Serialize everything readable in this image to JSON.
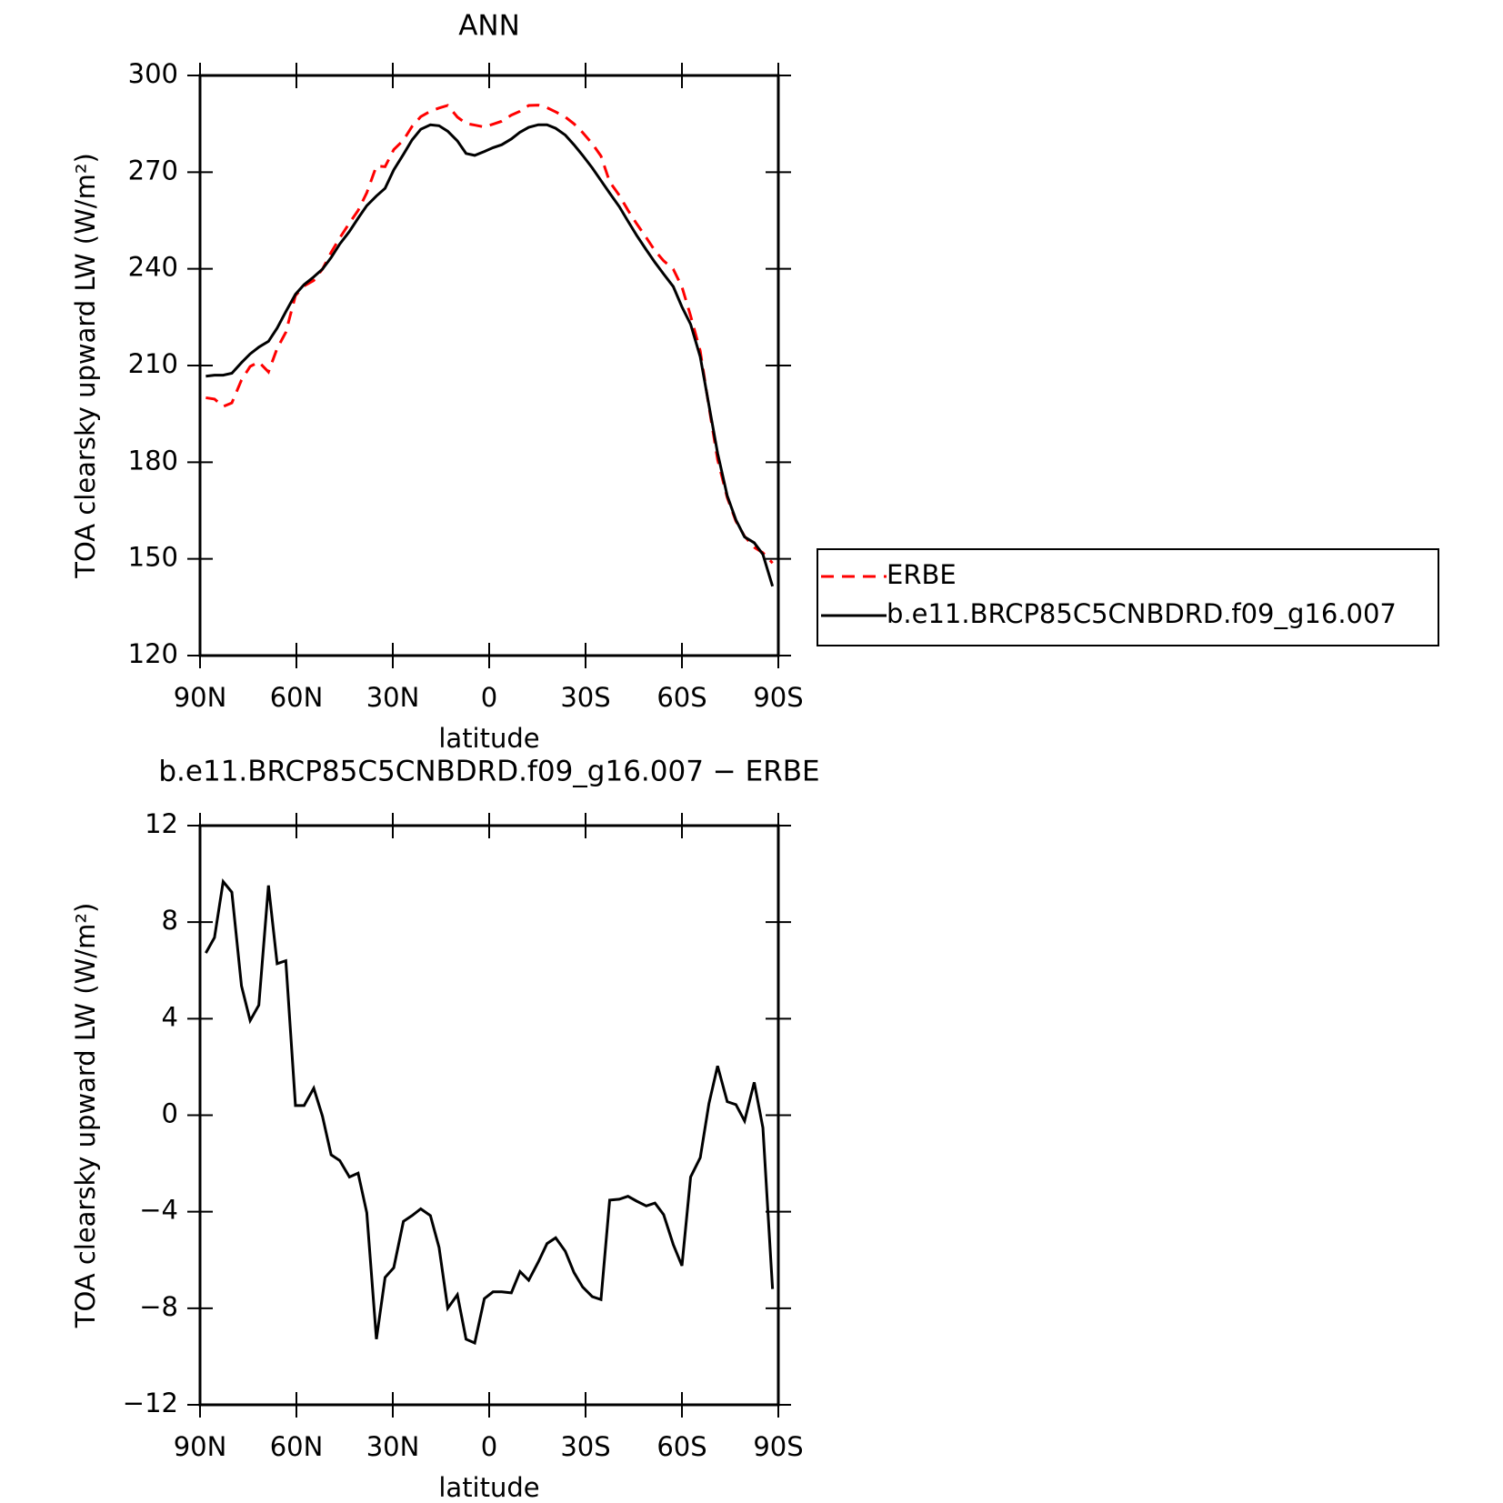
{
  "chart_data": [
    {
      "type": "line",
      "title": "ANN",
      "x_label": "latitude",
      "y_label": "TOA clearsky upward LW (W/m²)",
      "xlim": [
        90,
        -90
      ],
      "xticks": [
        {
          "value": 90,
          "label": "90N"
        },
        {
          "value": 60,
          "label": "60N"
        },
        {
          "value": 30,
          "label": "30N"
        },
        0,
        {
          "value": -30,
          "label": "30S"
        },
        {
          "value": -60,
          "label": "60S"
        },
        {
          "value": -90,
          "label": "90S"
        }
      ],
      "ylim": [
        120,
        300
      ],
      "yticks": [
        120,
        150,
        180,
        210,
        240,
        270,
        300
      ],
      "legend": "right",
      "x": [
        88.2,
        85.5,
        82.8,
        80.1,
        77.1,
        74.4,
        71.7,
        68.7,
        66.0,
        63.3,
        60.3,
        57.6,
        54.6,
        51.9,
        49.2,
        46.5,
        43.5,
        40.8,
        38.1,
        35.1,
        32.4,
        29.7,
        26.7,
        24.0,
        21.3,
        18.3,
        15.6,
        12.9,
        9.9,
        7.2,
        4.5,
        1.5,
        -1.2,
        -3.9,
        -6.9,
        -9.6,
        -12.3,
        -15.3,
        -18.0,
        -20.7,
        -23.7,
        -26.4,
        -29.1,
        -32.1,
        -34.8,
        -37.5,
        -40.5,
        -43.2,
        -45.9,
        -48.9,
        -51.6,
        -54.3,
        -57.3,
        -60.0,
        -62.7,
        -65.7,
        -68.4,
        -71.1,
        -74.1,
        -76.8,
        -79.5,
        -82.5,
        -85.2,
        -88.2
      ],
      "series": [
        {
          "name": "ERBE",
          "color": "#ff0000",
          "line_style": "dashed",
          "values": [
            200.0,
            199.6,
            197.3,
            198.4,
            205.5,
            209.7,
            211.1,
            208.0,
            215.3,
            220.3,
            231.7,
            234.7,
            236.4,
            239.9,
            245.1,
            249.6,
            254.2,
            258.1,
            263.6,
            271.9,
            271.7,
            277.0,
            279.9,
            284.2,
            287.2,
            288.9,
            289.9,
            290.7,
            287.1,
            285.1,
            284.6,
            284.0,
            284.9,
            285.8,
            287.7,
            288.9,
            290.7,
            290.8,
            290.0,
            288.7,
            287.1,
            285.0,
            282.3,
            278.8,
            275.0,
            267.0,
            262.8,
            258.2,
            254.0,
            249.7,
            245.6,
            242.5,
            239.9,
            234.4,
            225.4,
            214.5,
            197.2,
            180.8,
            169.0,
            161.7,
            157.0,
            153.6,
            151.9,
            148.7
          ]
        },
        {
          "name": "b.e11.BRCP85C5CNBDRD.f09_g16.007",
          "color": "#000000",
          "line_style": "solid",
          "values": [
            206.7,
            207,
            207,
            207.6,
            210.9,
            213.6,
            215.7,
            217.5,
            221.6,
            226.7,
            232.1,
            235.1,
            237.5,
            239.9,
            243.5,
            247.7,
            251.6,
            255.7,
            259.6,
            262.6,
            265,
            270.7,
            275.5,
            280,
            283.3,
            284.7,
            284.4,
            282.7,
            279.7,
            275.8,
            275.2,
            276.4,
            277.6,
            278.5,
            280.3,
            282.4,
            283.9,
            284.7,
            284.7,
            283.6,
            281.5,
            278.5,
            275.2,
            271.3,
            267.4,
            263.5,
            259.3,
            254.8,
            250.4,
            245.9,
            242,
            238.4,
            234.5,
            228.2,
            222.8,
            212.7,
            197.7,
            182.8,
            169.6,
            162.1,
            156.8,
            155,
            151.4,
            141.5
          ]
        }
      ]
    },
    {
      "type": "line",
      "title": "b.e11.BRCP85C5CNBDRD.f09_g16.007 − ERBE",
      "x_label": "latitude",
      "y_label": "TOA clearsky upward LW (W/m²)",
      "xlim": [
        90,
        -90
      ],
      "xticks": [
        {
          "value": 90,
          "label": "90N"
        },
        {
          "value": 60,
          "label": "60N"
        },
        {
          "value": 30,
          "label": "30N"
        },
        0,
        {
          "value": -30,
          "label": "30S"
        },
        {
          "value": -60,
          "label": "60S"
        },
        {
          "value": -90,
          "label": "90S"
        }
      ],
      "ylim": [
        -12,
        12
      ],
      "yticks": [
        {
          "value": -12,
          "label": "−12"
        },
        {
          "value": -8,
          "label": "−8"
        },
        {
          "value": -4,
          "label": "−4"
        },
        0,
        4,
        8,
        12
      ],
      "x": [
        88.2,
        85.5,
        82.8,
        80.1,
        77.1,
        74.4,
        71.7,
        68.7,
        66.0,
        63.3,
        60.3,
        57.6,
        54.6,
        51.9,
        49.2,
        46.5,
        43.5,
        40.8,
        38.1,
        35.1,
        32.4,
        29.7,
        26.7,
        24.0,
        21.3,
        18.3,
        15.6,
        12.9,
        9.9,
        7.2,
        4.5,
        1.5,
        -1.2,
        -3.9,
        -6.9,
        -9.6,
        -12.3,
        -15.3,
        -18.0,
        -20.7,
        -23.7,
        -26.4,
        -29.1,
        -32.1,
        -34.8,
        -37.5,
        -40.5,
        -43.2,
        -45.9,
        -48.9,
        -51.6,
        -54.3,
        -57.3,
        -60.0,
        -62.7,
        -65.7,
        -68.4,
        -71.1,
        -74.1,
        -76.8,
        -79.5,
        -82.5,
        -85.2,
        -88.2
      ],
      "color": "#000000",
      "values": [
        6.72,
        7.36,
        9.68,
        9.24,
        5.36,
        3.92,
        4.56,
        9.52,
        6.28,
        6.4,
        0.4,
        0.4,
        1.12,
        -0.04,
        -1.64,
        -1.88,
        -2.56,
        -2.4,
        -4.04,
        -9.28,
        -6.72,
        -6.32,
        -4.4,
        -4.16,
        -3.88,
        -4.16,
        -5.48,
        -8.0,
        -7.44,
        -9.28,
        -9.44,
        -7.6,
        -7.32,
        -7.32,
        -7.36,
        -6.48,
        -6.84,
        -6.08,
        -5.32,
        -5.08,
        -5.64,
        -6.52,
        -7.12,
        -7.52,
        -7.64,
        -3.52,
        -3.48,
        -3.36,
        -3.56,
        -3.76,
        -3.64,
        -4.12,
        -5.36,
        -6.24,
        -2.56,
        -1.76,
        0.48,
        2.04,
        0.56,
        0.44,
        -0.24,
        1.36,
        -0.52,
        -7.2
      ]
    }
  ]
}
